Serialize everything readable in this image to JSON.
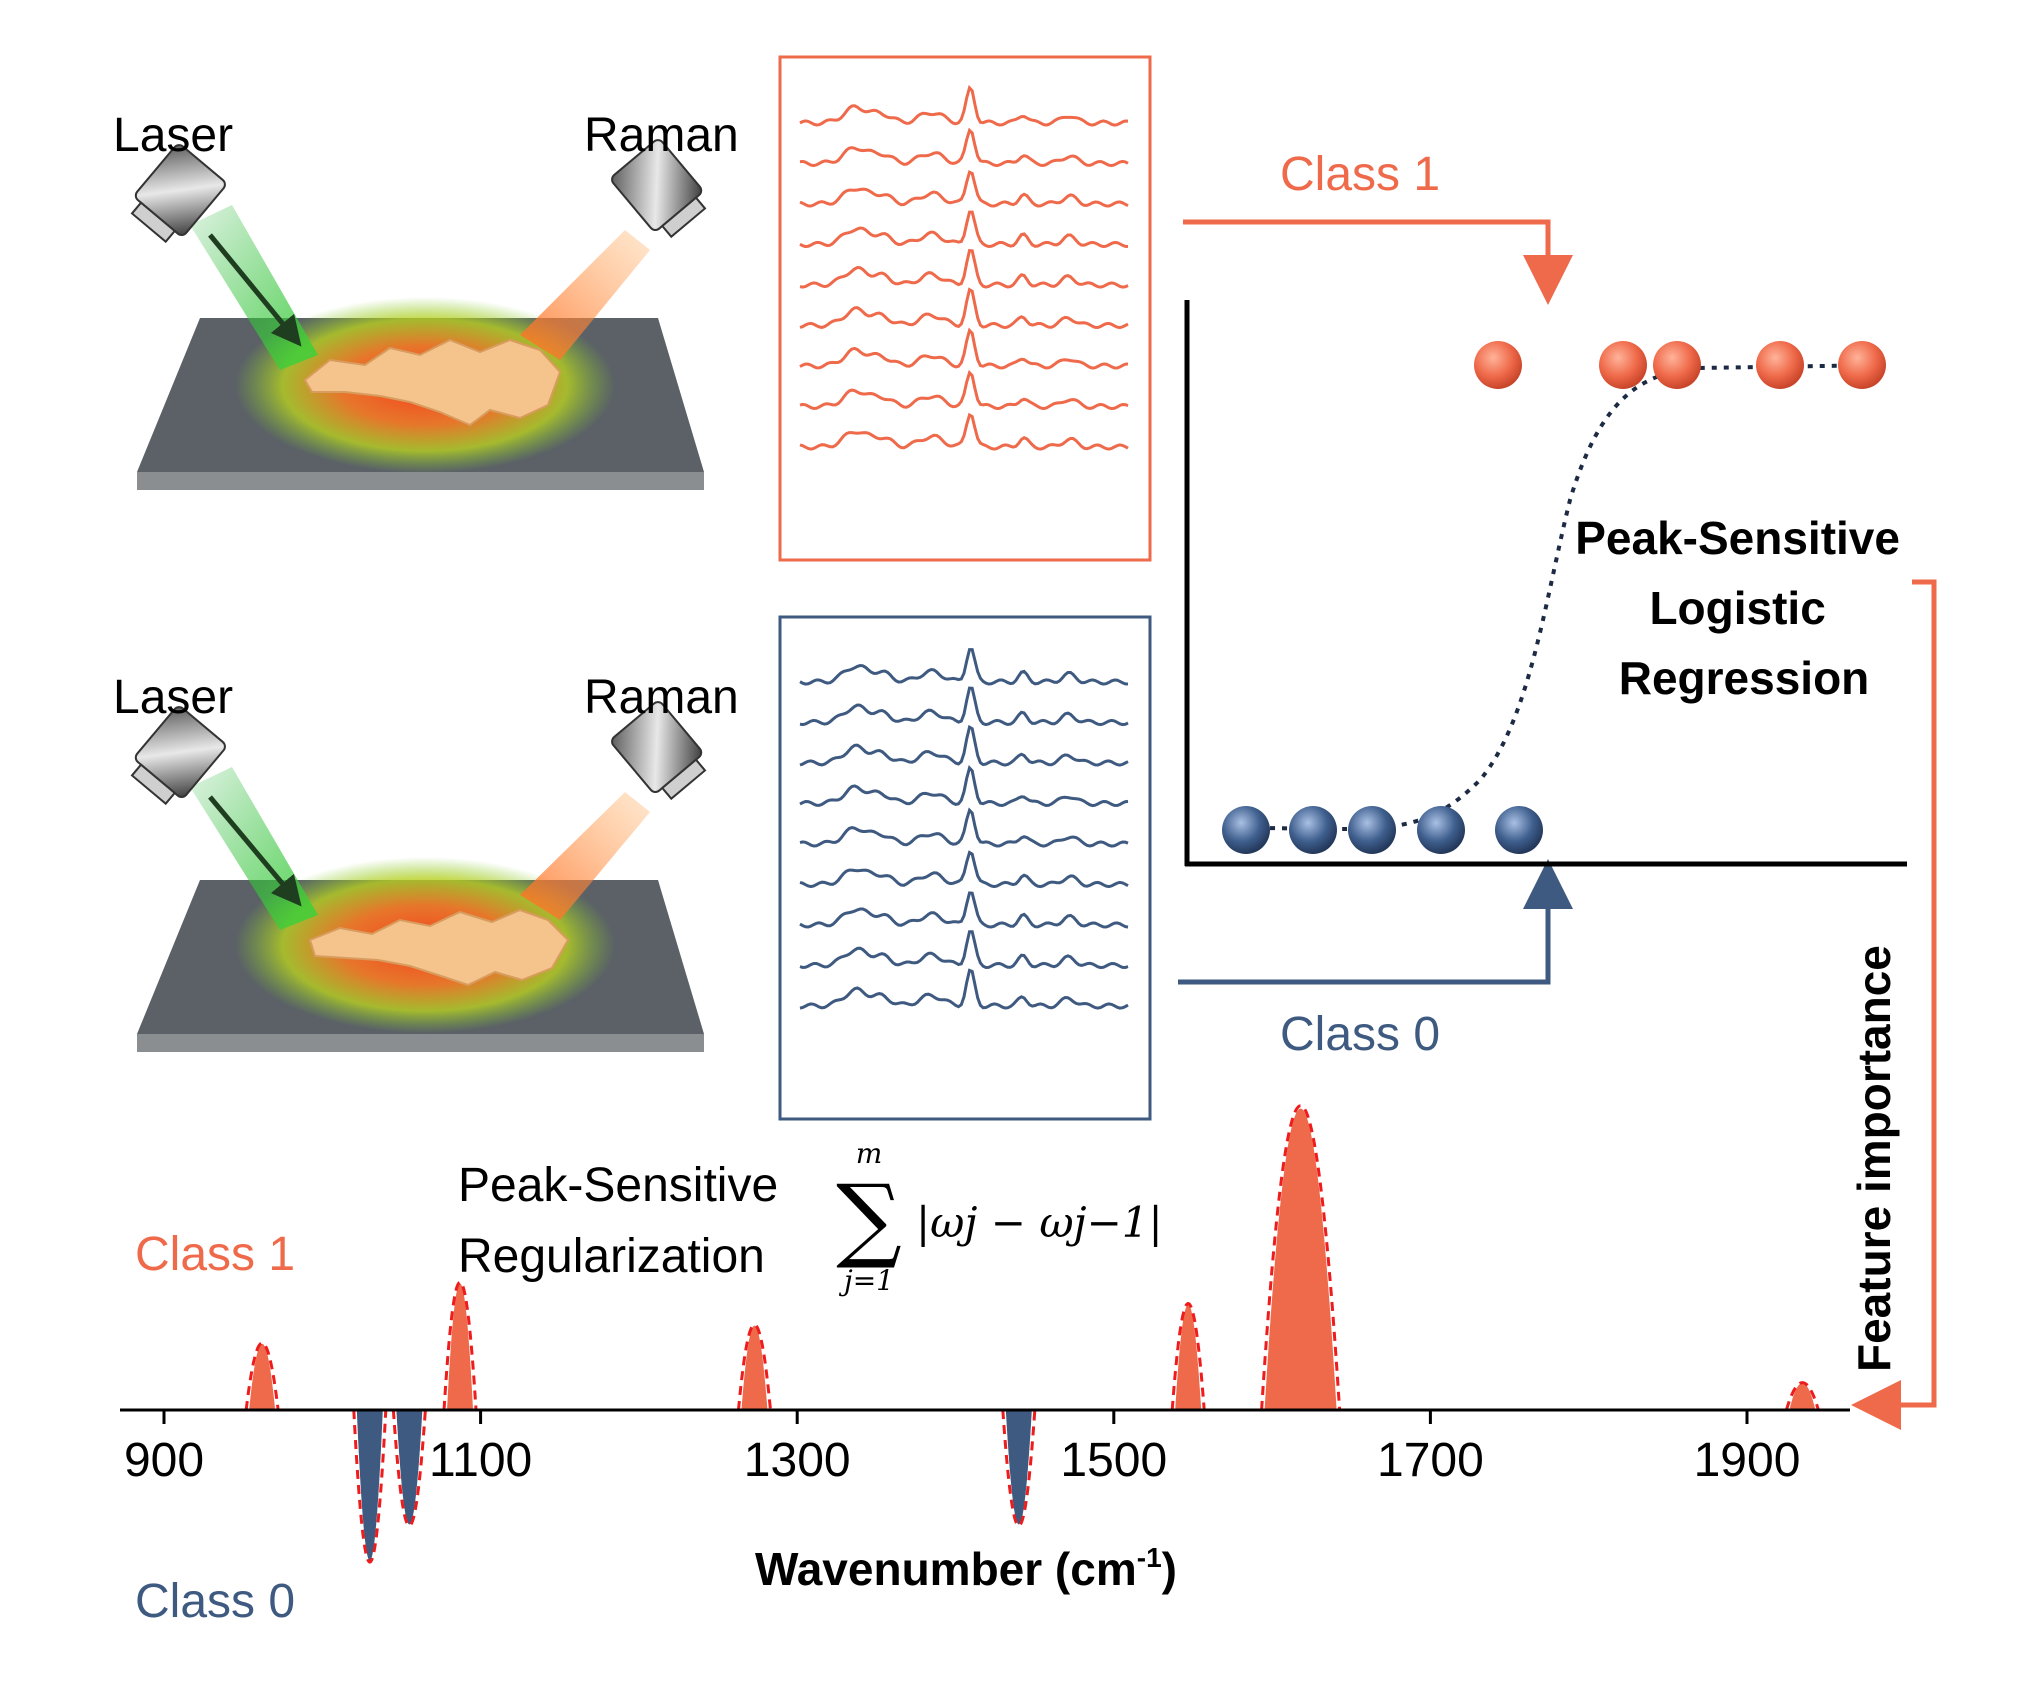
{
  "setup": {
    "laser_label": "Laser",
    "raman_label": "Raman"
  },
  "flow": {
    "class1_label": "Class 1",
    "class0_label": "Class 0",
    "model_title_lines": [
      "Peak-Sensitive",
      "Logistic",
      "Regression"
    ],
    "feature_importance_label": "Feature importance"
  },
  "regularization": {
    "title_lines": [
      "Peak-Sensitive",
      "Regularization"
    ],
    "sum_upper": "m",
    "sum_lower": "j=1",
    "sum_body": "|ωj − ωj−1|"
  },
  "bottom_axis": {
    "class1_label": "Class 1",
    "class0_label": "Class 0",
    "xlabel_main": "Wavenumber (cm",
    "xlabel_sup": "-1",
    "xlabel_close": ")",
    "ticks": [
      900,
      1100,
      1300,
      1500,
      1700,
      1900
    ],
    "xlim": [
      875,
      1990
    ]
  },
  "chart_data": {
    "type": "area",
    "x_unit": "cm-1",
    "peaks": [
      {
        "center": 962,
        "value": 0.22
      },
      {
        "center": 1030,
        "value": -0.5
      },
      {
        "center": 1055,
        "value": -0.38
      },
      {
        "center": 1087,
        "value": 0.42
      },
      {
        "center": 1273,
        "value": 0.28
      },
      {
        "center": 1440,
        "value": -0.38
      },
      {
        "center": 1547,
        "value": 0.35
      },
      {
        "center": 1618,
        "value": 1.0
      },
      {
        "center": 1935,
        "value": 0.09
      }
    ]
  },
  "colors": {
    "class1": "#ee6a4b",
    "class0": "#3f5a80",
    "laser_green": "#3ec832",
    "dashed": "#ee1c1c"
  }
}
